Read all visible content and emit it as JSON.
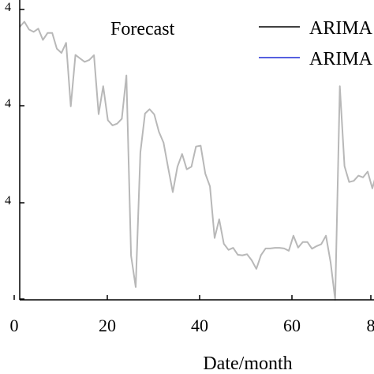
{
  "chart_data": {
    "type": "line",
    "title": "",
    "annotation": "Forecast",
    "xlabel": "Date/month",
    "ylabel": "",
    "xlim": [
      0,
      82
    ],
    "ylim": [
      0,
      1
    ],
    "x_ticks": [
      "0",
      "20",
      "40",
      "60",
      "8"
    ],
    "y_tick_fragments": [
      "4",
      "4",
      "4"
    ],
    "grid": false,
    "legend": {
      "placement": "top-right",
      "entries": [
        {
          "label": "ARIMA",
          "color": "#000000"
        },
        {
          "label": "ARIMA",
          "color": "#1f2bd6"
        }
      ]
    },
    "series": [
      {
        "color": "#b8b8b8",
        "x": [
          0,
          1,
          2,
          3,
          4,
          5,
          6,
          7,
          8,
          9,
          10,
          11,
          12,
          13,
          14,
          15,
          16,
          17,
          18,
          19,
          20,
          21,
          22,
          23,
          24,
          25,
          26,
          27,
          28,
          29,
          30,
          31,
          32,
          33,
          34,
          35,
          36,
          37,
          38,
          39,
          40,
          41,
          42,
          43,
          44,
          45,
          46,
          47,
          48,
          49,
          50,
          51,
          52,
          53,
          54,
          55,
          56,
          57,
          58,
          59,
          60,
          61,
          62,
          63,
          64,
          65,
          66,
          67,
          68,
          69,
          70,
          71,
          72,
          73,
          74,
          75,
          76,
          77,
          78,
          79,
          80,
          81,
          82
        ],
        "values": [
          0.945,
          0.963,
          0.936,
          0.928,
          0.939,
          0.9,
          0.924,
          0.924,
          0.87,
          0.855,
          0.89,
          0.67,
          0.848,
          0.836,
          0.824,
          0.831,
          0.847,
          0.643,
          0.74,
          0.622,
          0.604,
          0.61,
          0.627,
          0.777,
          0.153,
          0.044,
          0.51,
          0.645,
          0.66,
          0.642,
          0.582,
          0.544,
          0.456,
          0.373,
          0.461,
          0.505,
          0.452,
          0.461,
          0.531,
          0.534,
          0.437,
          0.393,
          0.214,
          0.279,
          0.194,
          0.173,
          0.18,
          0.156,
          0.154,
          0.158,
          0.137,
          0.107,
          0.155,
          0.178,
          0.178,
          0.18,
          0.18,
          0.178,
          0.17,
          0.222,
          0.181,
          0.2,
          0.2,
          0.177,
          0.186,
          0.193,
          0.222,
          0.13,
          0.0,
          0.74,
          0.463,
          0.408,
          0.412,
          0.43,
          0.424,
          0.444,
          0.386,
          0.444,
          0.432,
          0.416,
          0.415,
          0.41,
          0.41
        ]
      }
    ]
  }
}
